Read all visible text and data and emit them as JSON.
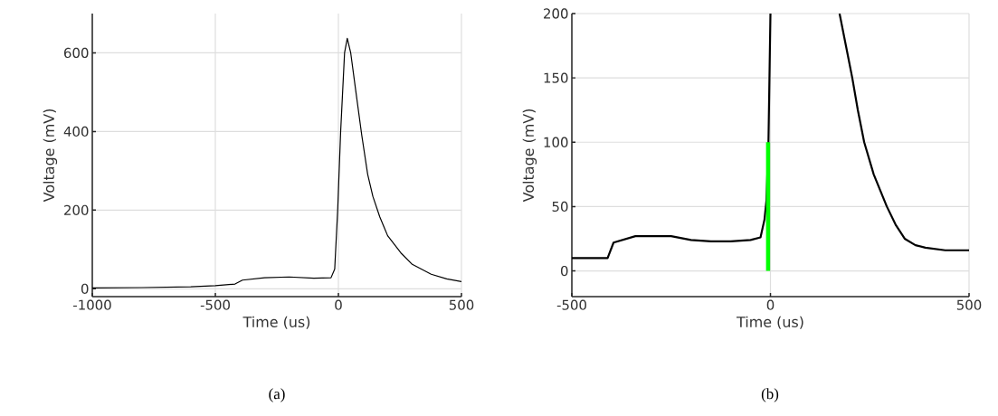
{
  "chart_data": [
    {
      "type": "line",
      "xlabel": "Time (us)",
      "ylabel": "Voltage (mV)",
      "annotations": [
        "(a)"
      ],
      "xlim": [
        -1000,
        500
      ],
      "ylim": [
        -20,
        700
      ],
      "xticks": [
        -1000,
        -500,
        0,
        500
      ],
      "yticks": [
        0,
        200,
        400,
        600
      ],
      "grid": true,
      "line_style": "solid",
      "series": [
        {
          "color": "#000000",
          "x": [
            -1000,
            -800,
            -600,
            -500,
            -420,
            -390,
            -300,
            -200,
            -100,
            -30,
            -15,
            -3,
            9,
            25,
            36,
            50,
            70,
            95,
            119,
            140,
            168,
            200,
            254,
            300,
            377,
            440,
            500
          ],
          "values": [
            2,
            3,
            5,
            8,
            12,
            22,
            28,
            30,
            27,
            28,
            50,
            200,
            398,
            600,
            637,
            600,
            506,
            390,
            291,
            235,
            183,
            135,
            91,
            62,
            37,
            25,
            18
          ]
        }
      ]
    },
    {
      "type": "line",
      "xlabel": "Time (us)",
      "ylabel": "Voltage (mV)",
      "annotations": [
        "(b)"
      ],
      "xlim": [
        -500,
        500
      ],
      "ylim": [
        -20,
        200
      ],
      "xticks": [
        -500,
        0,
        500
      ],
      "yticks": [
        0,
        50,
        100,
        150,
        200
      ],
      "grid": true,
      "line_style": "solid",
      "series": [
        {
          "color": "#000000",
          "x": [
            -500,
            -450,
            -410,
            -395,
            -340,
            -300,
            -250,
            -200,
            -150,
            -100,
            -50,
            -25,
            -15,
            -10,
            -5,
            0
          ],
          "values": [
            10,
            10,
            10,
            22,
            27,
            27,
            27,
            24,
            23,
            23,
            24,
            26,
            40,
            55,
            100,
            200
          ]
        },
        {
          "color": "#000000",
          "x": [
            174,
            190,
            206,
            220,
            236,
            260,
            293,
            315,
            338,
            365,
            390,
            440,
            500
          ],
          "values": [
            200,
            175,
            150,
            125,
            100,
            75,
            50,
            36,
            25,
            20,
            18,
            16,
            16
          ]
        },
        {
          "color": "#00ff00",
          "x": [
            -6,
            -6
          ],
          "values": [
            0,
            100
          ]
        }
      ]
    }
  ]
}
